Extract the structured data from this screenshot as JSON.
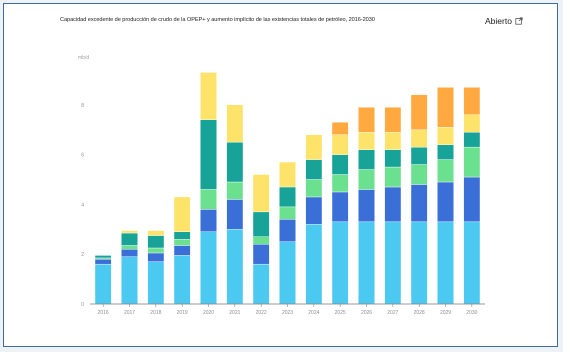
{
  "header": {
    "title": "Capacidad excedente de producción de crudo de la OPEP+ y aumento implícito de las existencias totales de petróleo, 2016-2030",
    "open_label": "Abierto"
  },
  "chart_data": {
    "type": "bar",
    "stacked": true,
    "title": "Capacidad excedente de producción de crudo de la OPEP+ y aumento implícito de las existencias totales de petróleo, 2016-2030",
    "ylabel": "mb/d",
    "ylim": [
      0,
      10
    ],
    "y_ticks": [
      0,
      2,
      4,
      6,
      8
    ],
    "categories": [
      "2016",
      "2017",
      "2018",
      "2019",
      "2020",
      "2021",
      "2022",
      "2023",
      "2024",
      "2025",
      "2026",
      "2027",
      "2028",
      "2029",
      "2030"
    ],
    "grid": false,
    "series": [
      {
        "color": "#4cc9f0",
        "values": [
          1.6,
          1.9,
          1.7,
          1.95,
          2.9,
          3.0,
          1.6,
          2.5,
          3.2,
          3.3,
          3.3,
          3.3,
          3.3,
          3.3,
          3.3
        ]
      },
      {
        "color": "#3a6fd8",
        "values": [
          0.2,
          0.3,
          0.35,
          0.4,
          0.9,
          1.2,
          0.8,
          0.9,
          1.1,
          1.2,
          1.3,
          1.4,
          1.5,
          1.6,
          1.8
        ]
      },
      {
        "color": "#6be08f",
        "values": [
          0.05,
          0.15,
          0.2,
          0.25,
          0.8,
          0.7,
          0.3,
          0.5,
          0.7,
          0.7,
          0.8,
          0.8,
          0.8,
          0.9,
          1.2
        ]
      },
      {
        "color": "#17a398",
        "values": [
          0.1,
          0.5,
          0.5,
          0.3,
          2.8,
          1.6,
          1.0,
          0.8,
          0.8,
          0.8,
          0.8,
          0.7,
          0.7,
          0.6,
          0.6
        ]
      },
      {
        "color": "#fde36a",
        "values": [
          0,
          0.1,
          0.2,
          1.4,
          1.9,
          1.5,
          1.5,
          1.0,
          1.0,
          0.8,
          0.7,
          0.7,
          0.7,
          0.7,
          0.7
        ]
      },
      {
        "color": "#ffa940",
        "values": [
          0,
          0,
          0,
          0,
          0,
          0,
          0,
          0,
          0,
          0.5,
          1.0,
          1.0,
          1.4,
          1.6,
          1.1
        ]
      }
    ]
  }
}
